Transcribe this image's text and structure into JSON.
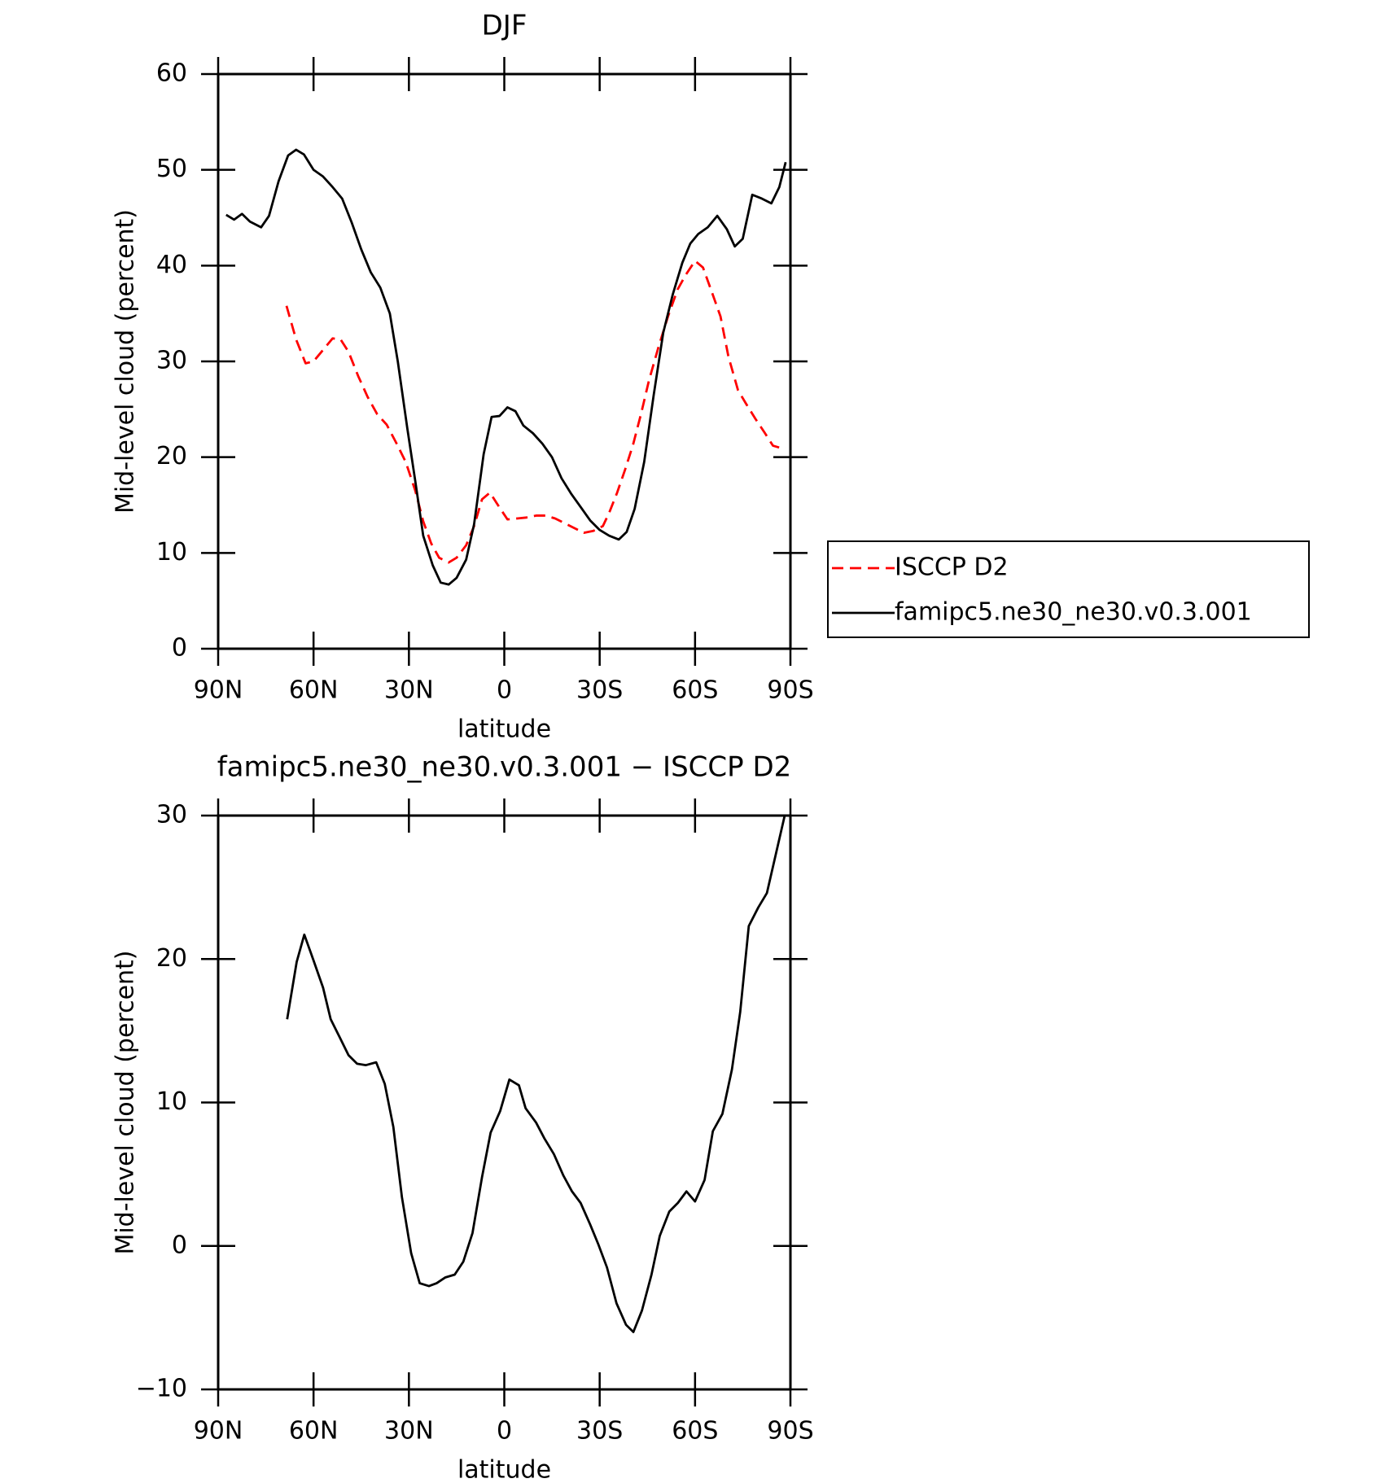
{
  "chart_data": [
    {
      "type": "line",
      "title": "DJF",
      "xlabel": "latitude",
      "ylabel": "Mid-level cloud (percent)",
      "xlim": [
        90,
        -90
      ],
      "xticks": [
        {
          "value": 90,
          "label": "90N"
        },
        {
          "value": 60,
          "label": "60N"
        },
        {
          "value": 30,
          "label": "30N"
        },
        0,
        {
          "value": -30,
          "label": "30S"
        },
        {
          "value": -60,
          "label": "60S"
        },
        {
          "value": -90,
          "label": "90S"
        }
      ],
      "ylim": [
        0,
        60
      ],
      "yticks": [
        0,
        10,
        20,
        30,
        40,
        50,
        60
      ],
      "legend": "right",
      "series": [
        {
          "name": "ISCCP D2",
          "color": "#ff0000",
          "dash": "dashed",
          "x": [
            68.5,
            65.5,
            62.5,
            60,
            57,
            54,
            51.5,
            49,
            46,
            43,
            40,
            37,
            34,
            31,
            28,
            25.5,
            23,
            20.5,
            17.5,
            15,
            12,
            9.5,
            7,
            4.5,
            2,
            -1,
            -4,
            -7,
            -10,
            -13,
            -16,
            -19,
            -22,
            -25,
            -28,
            -31,
            -33,
            -35.5,
            -38,
            -40.5,
            -43,
            -45.5,
            -48.5,
            -51.5,
            -54.5,
            -57,
            -60,
            -62.5,
            -65,
            -68,
            -70.5,
            -73.5,
            -76,
            -79,
            -82,
            -84.5,
            -86.5,
            -88.5
          ],
          "values": [
            35.8,
            32.3,
            29.8,
            30.0,
            31.2,
            32.4,
            32.3,
            31.0,
            28.5,
            26.3,
            24.5,
            23.4,
            21.5,
            19.5,
            16.5,
            13.3,
            11.0,
            9.5,
            9.0,
            9.5,
            10.8,
            12.8,
            15.6,
            16.3,
            15.0,
            13.5,
            13.6,
            13.7,
            13.9,
            13.9,
            13.6,
            13.1,
            12.6,
            12.1,
            12.3,
            12.8,
            14.2,
            16.3,
            18.7,
            21.3,
            24.5,
            28.0,
            31.5,
            34.7,
            37.5,
            39.0,
            40.5,
            39.8,
            37.5,
            34.7,
            30.5,
            27.0,
            25.6,
            24.0,
            22.5,
            21.2,
            21.0,
            21.0
          ]
        },
        {
          "name": "famipc5.ne30_ne30.v0.3.001",
          "color": "#000000",
          "dash": "solid",
          "x": [
            87.5,
            85,
            82.5,
            80,
            76.5,
            74,
            71,
            68,
            65.5,
            63,
            60,
            57,
            54,
            51,
            48,
            45,
            42,
            39,
            36,
            33.5,
            30.5,
            28,
            25.5,
            22.5,
            20,
            17.5,
            15,
            12,
            9.5,
            6.5,
            4,
            1.5,
            -1,
            -3.5,
            -6,
            -9,
            -12,
            -15,
            -18,
            -21,
            -24,
            -27,
            -30,
            -33,
            -36,
            -38.5,
            -41,
            -44,
            -47,
            -50,
            -53,
            -56,
            -58.5,
            -61,
            -64,
            -67,
            -70,
            -72.5,
            -75,
            -78,
            -81,
            -84,
            -86.5,
            -88.5
          ],
          "values": [
            45.3,
            44.8,
            45.4,
            44.6,
            44.0,
            45.2,
            48.8,
            51.5,
            52.1,
            51.6,
            50.0,
            49.3,
            48.2,
            47.0,
            44.5,
            41.7,
            39.3,
            37.7,
            35.0,
            30.0,
            23.0,
            17.5,
            11.8,
            8.7,
            6.9,
            6.7,
            7.4,
            9.3,
            13.0,
            20.3,
            24.2,
            24.3,
            25.2,
            24.8,
            23.3,
            22.5,
            21.4,
            20.0,
            17.8,
            16.2,
            14.8,
            13.4,
            12.4,
            11.8,
            11.4,
            12.2,
            14.6,
            19.5,
            26.5,
            33.0,
            37.0,
            40.3,
            42.3,
            43.3,
            44.0,
            45.2,
            43.8,
            42.0,
            42.8,
            47.4,
            47.0,
            46.5,
            48.2,
            50.8
          ]
        }
      ]
    },
    {
      "type": "line",
      "title": "famipc5.ne30_ne30.v0.3.001 − ISCCP D2",
      "xlabel": "latitude",
      "ylabel": "Mid-level cloud (percent)",
      "xlim": [
        90,
        -90
      ],
      "xticks": [
        {
          "value": 90,
          "label": "90N"
        },
        {
          "value": 60,
          "label": "60N"
        },
        {
          "value": 30,
          "label": "30N"
        },
        0,
        {
          "value": -30,
          "label": "30S"
        },
        {
          "value": -60,
          "label": "60S"
        },
        {
          "value": -90,
          "label": "90S"
        }
      ],
      "ylim": [
        -10,
        30
      ],
      "yticks": [
        {
          "value": -10,
          "label": "−10"
        },
        0,
        10,
        20,
        30
      ],
      "series": [
        {
          "color": "#000000",
          "dash": "solid",
          "x": [
            68.3,
            65.3,
            62.9,
            60,
            57,
            54.6,
            51.9,
            49,
            46.3,
            43.6,
            40.3,
            37.6,
            34.9,
            32.2,
            29.3,
            26.6,
            23.7,
            21.3,
            18.6,
            15.6,
            12.9,
            10.0,
            7.0,
            4.3,
            1.3,
            -1.6,
            -4.6,
            -6.7,
            -10,
            -12.6,
            -15.6,
            -18.6,
            -21.3,
            -24,
            -27,
            -29.6,
            -32.3,
            -35.3,
            -38.3,
            -40.6,
            -43.3,
            -46.3,
            -48.9,
            -51.9,
            -54.6,
            -57.3,
            -60,
            -63,
            -65.6,
            -68.6,
            -71.6,
            -74.2,
            -76.9,
            -79.9,
            -82.6,
            -88.2
          ],
          "values": [
            15.8,
            19.8,
            21.7,
            19.9,
            18.0,
            15.8,
            14.6,
            13.3,
            12.7,
            12.6,
            12.8,
            11.3,
            8.3,
            3.4,
            -0.5,
            -2.6,
            -2.8,
            -2.6,
            -2.2,
            -2.0,
            -1.1,
            0.9,
            4.8,
            7.9,
            9.4,
            11.6,
            11.2,
            9.6,
            8.6,
            7.5,
            6.4,
            4.9,
            3.8,
            3.0,
            1.5,
            0.1,
            -1.5,
            -4.0,
            -5.5,
            -6.0,
            -4.5,
            -2.0,
            0.7,
            2.4,
            3.0,
            3.8,
            3.1,
            4.6,
            8.0,
            9.2,
            12.3,
            16.3,
            22.3,
            23.6,
            24.6,
            30.0
          ]
        }
      ]
    }
  ]
}
